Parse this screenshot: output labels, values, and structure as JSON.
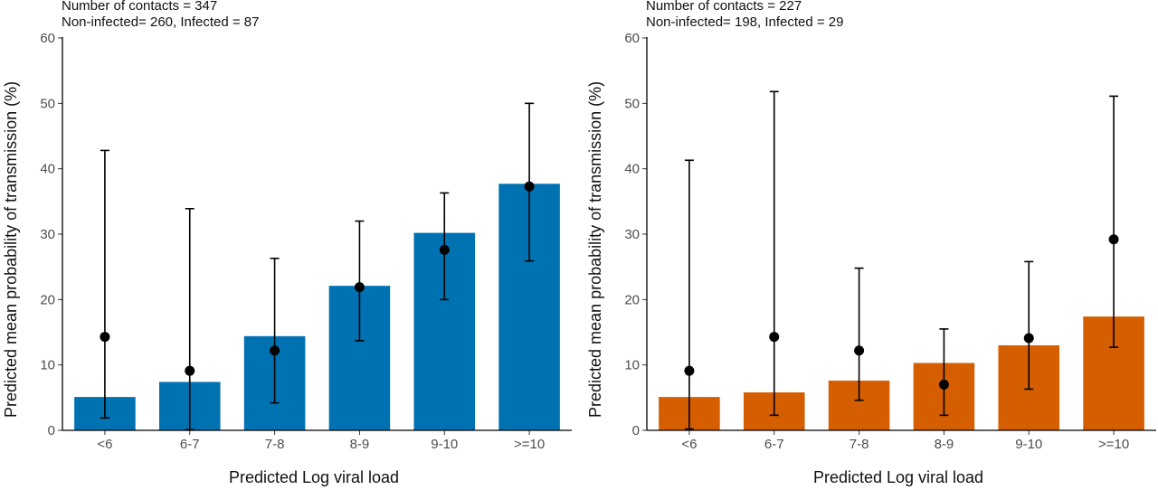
{
  "chart_data": [
    {
      "type": "bar",
      "subtitle_line1": "Number of contacts = 347",
      "subtitle_line2": "Non-infected= 260, Infected = 87",
      "xlabel": "Predicted Log viral load",
      "ylabel": "Predicted mean probability of transmission (%)",
      "ylim": [
        0,
        60
      ],
      "yticks": [
        0,
        10,
        20,
        30,
        40,
        50,
        60
      ],
      "categories": [
        "<6",
        "6-7",
        "7-8",
        "8-9",
        "9-10",
        ">=10"
      ],
      "bar_color": "#0072b2",
      "bars": [
        5.1,
        7.4,
        14.4,
        22.1,
        30.2,
        37.7
      ],
      "points": [
        14.3,
        9.1,
        12.2,
        21.9,
        27.6,
        37.3
      ],
      "ci_low": [
        1.9,
        0.1,
        4.2,
        13.7,
        20.0,
        25.9
      ],
      "ci_high": [
        42.8,
        33.9,
        26.3,
        32.0,
        36.3,
        50.0
      ],
      "grid": false
    },
    {
      "type": "bar",
      "subtitle_line1": "Number of contacts = 227",
      "subtitle_line2": "Non-infected= 198, Infected = 29",
      "xlabel": "Predicted Log viral load",
      "ylabel": "Predicted mean probability of transmission (%)",
      "ylim": [
        0,
        60
      ],
      "yticks": [
        0,
        10,
        20,
        30,
        40,
        50,
        60
      ],
      "categories": [
        "<6",
        "6-7",
        "7-8",
        "8-9",
        "9-10",
        ">=10"
      ],
      "bar_color": "#d55e00",
      "bars": [
        5.1,
        5.8,
        7.6,
        10.3,
        13.0,
        17.4
      ],
      "points": [
        9.1,
        14.3,
        12.2,
        7.0,
        14.1,
        29.2
      ],
      "ci_low": [
        0.2,
        2.3,
        4.6,
        2.3,
        6.3,
        12.7
      ],
      "ci_high": [
        41.3,
        51.8,
        24.8,
        15.5,
        25.8,
        51.1
      ],
      "grid": false
    }
  ]
}
